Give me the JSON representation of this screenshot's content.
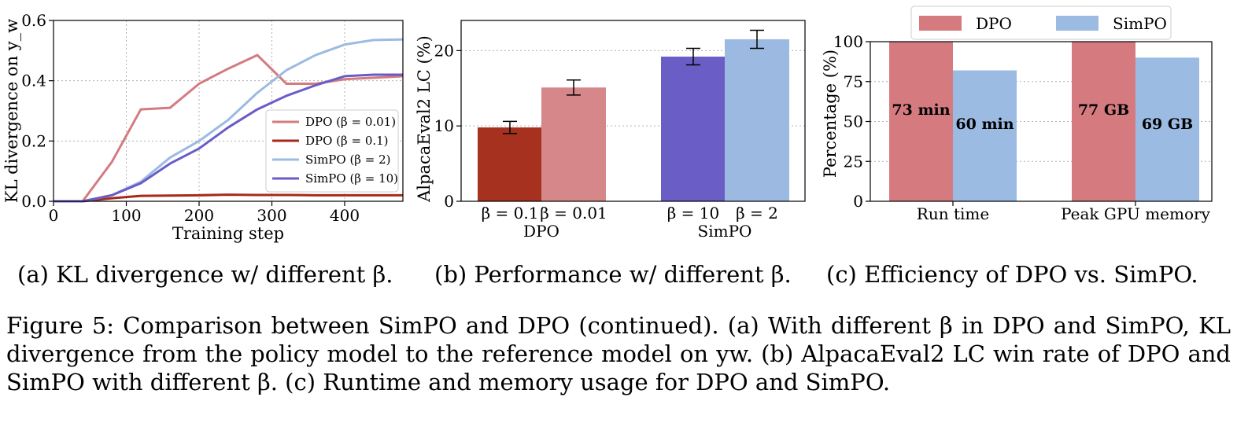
{
  "chart_data": [
    {
      "type": "line",
      "xlabel": "Training step",
      "ylabel": "KL divergence on y_w",
      "xlim": [
        0,
        480
      ],
      "ylim": [
        0,
        0.6
      ],
      "xticks": [
        "0",
        "100",
        "200",
        "300",
        "400"
      ],
      "yticks": [
        "0.0",
        "0.2",
        "0.4",
        "0.6"
      ],
      "grid": true,
      "legend_position": "center-right",
      "series": [
        {
          "name": "DPO (β = 0.01)",
          "color": "#d47b7f",
          "x": [
            0,
            40,
            80,
            120,
            160,
            200,
            240,
            280,
            320,
            360,
            400,
            440,
            480
          ],
          "y": [
            0.0,
            0.0,
            0.13,
            0.305,
            0.31,
            0.39,
            0.44,
            0.485,
            0.39,
            0.39,
            0.405,
            0.41,
            0.415
          ]
        },
        {
          "name": "DPO (β = 0.1)",
          "color": "#a52a1c",
          "x": [
            0,
            40,
            80,
            120,
            160,
            200,
            240,
            280,
            320,
            360,
            400,
            440,
            480
          ],
          "y": [
            0.0,
            0.0,
            0.01,
            0.018,
            0.019,
            0.02,
            0.022,
            0.021,
            0.021,
            0.02,
            0.02,
            0.02,
            0.02
          ]
        },
        {
          "name": "SimPO (β = 2)",
          "color": "#9bbbe3",
          "x": [
            0,
            40,
            80,
            120,
            160,
            200,
            240,
            280,
            320,
            360,
            400,
            440,
            480
          ],
          "y": [
            0.0,
            0.0,
            0.02,
            0.065,
            0.145,
            0.2,
            0.27,
            0.36,
            0.435,
            0.485,
            0.52,
            0.535,
            0.537
          ]
        },
        {
          "name": "SimPO (β = 10)",
          "color": "#6a5cc8",
          "x": [
            0,
            40,
            80,
            120,
            160,
            200,
            240,
            280,
            320,
            360,
            400,
            440,
            480
          ],
          "y": [
            0.0,
            0.0,
            0.02,
            0.06,
            0.125,
            0.175,
            0.245,
            0.305,
            0.35,
            0.385,
            0.415,
            0.42,
            0.42
          ]
        }
      ]
    },
    {
      "type": "bar",
      "ylabel": "AlpacaEval2 LC (%)",
      "ylim": [
        0,
        24
      ],
      "yticks": [
        "0",
        "10",
        "20"
      ],
      "grid": true,
      "groups": [
        "DPO",
        "SimPO"
      ],
      "bars": [
        {
          "group": "DPO",
          "label": "β = 0.1",
          "value": 9.8,
          "err": 0.8,
          "color": "#a5311e"
        },
        {
          "group": "DPO",
          "label": "β = 0.01",
          "value": 15.1,
          "err": 1.0,
          "color": "#d6878a"
        },
        {
          "group": "SimPO",
          "label": "β = 10",
          "value": 19.2,
          "err": 1.1,
          "color": "#6a5dc6"
        },
        {
          "group": "SimPO",
          "label": "β = 2",
          "value": 21.5,
          "err": 1.2,
          "color": "#9bb9e1"
        }
      ]
    },
    {
      "type": "bar",
      "ylabel": "Percentage (%)",
      "ylim": [
        0,
        100
      ],
      "yticks": [
        "0",
        "25",
        "50",
        "75",
        "100"
      ],
      "grid": true,
      "legend_position": "top",
      "categories": [
        "Run time",
        "Peak GPU memory"
      ],
      "series": [
        {
          "name": "DPO",
          "color": "#d57b80",
          "values": [
            100,
            100
          ],
          "labels": [
            "73 min",
            "77 GB"
          ]
        },
        {
          "name": "SimPO",
          "color": "#9cbbe2",
          "values": [
            82,
            90
          ],
          "labels": [
            "60 min",
            "69 GB"
          ]
        }
      ]
    }
  ],
  "subcaptions": {
    "a": "(a) KL divergence w/ different β.",
    "b": "(b) Performance w/ different β.",
    "c": "(c) Efficiency of DPO vs. SimPO."
  },
  "caption": "Figure 5: Comparison between SimPO and DPO (continued). (a) With different β in DPO and SimPO, KL divergence from the policy model to the reference model on yw. (b) AlpacaEval2 LC win rate of DPO and SimPO with different β. (c) Runtime and memory usage for DPO and SimPO."
}
